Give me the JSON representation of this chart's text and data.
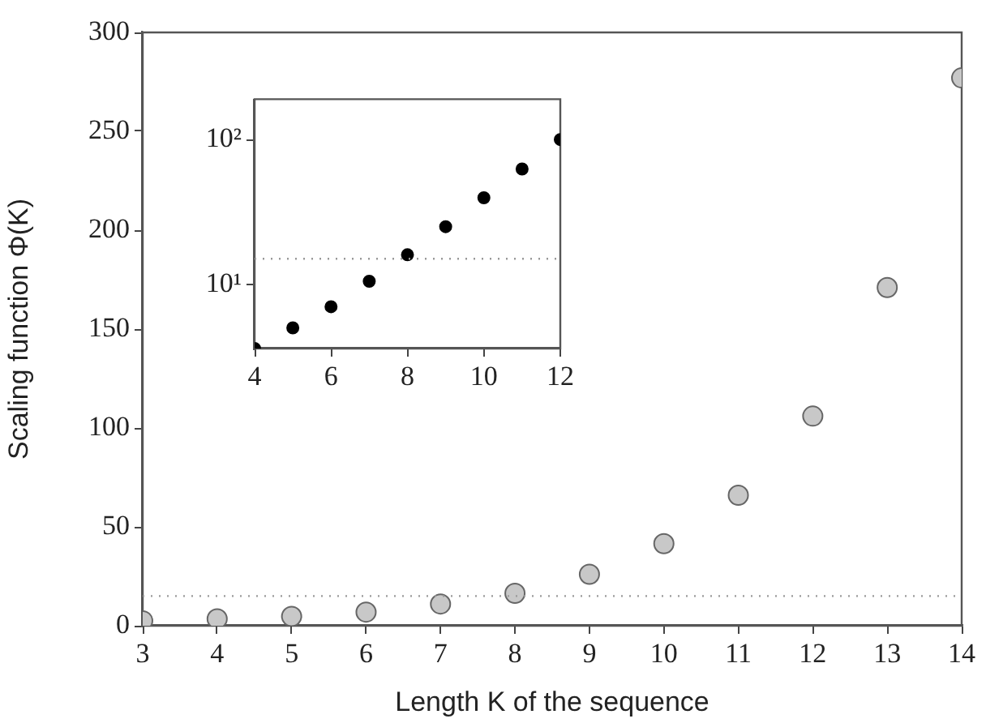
{
  "chart_data": [
    {
      "type": "scatter",
      "xlabel": "Length K of the sequence",
      "ylabel": "Scaling function Φ(K)",
      "x": [
        3,
        4,
        5,
        6,
        7,
        8,
        9,
        10,
        11,
        12,
        13,
        14
      ],
      "values": [
        2.5,
        3.5,
        4.7,
        6.9,
        11,
        16.4,
        26,
        41.5,
        66,
        106,
        171,
        277
      ],
      "color": "#c8c8c8",
      "marker": "circle",
      "xlim": [
        3,
        14
      ],
      "xticks": [
        3,
        4,
        5,
        6,
        7,
        8,
        9,
        10,
        11,
        12,
        13,
        14
      ],
      "ylim": [
        0,
        300
      ],
      "yticks": [
        0,
        50,
        100,
        150,
        200,
        250,
        300
      ],
      "grid": false,
      "ref_lines": [
        {
          "axis": "y",
          "value": 15,
          "color": "#999999",
          "line_style": "dotted"
        }
      ]
    },
    {
      "type": "scatter",
      "log": "y",
      "x": [
        4,
        5,
        6,
        7,
        8,
        9,
        10,
        11,
        12
      ],
      "values": [
        3.6,
        5,
        7,
        10.5,
        16,
        25,
        39.6,
        62.6,
        100
      ],
      "color": "#000000",
      "marker": "circle",
      "xlim": [
        4,
        12
      ],
      "xticks": [
        4,
        6,
        8,
        10,
        12
      ],
      "ylim": [
        3.6,
        190
      ],
      "yticks": [
        {
          "value": 10,
          "label": "10¹"
        },
        {
          "value": 100,
          "label": "10²"
        }
      ],
      "grid": false,
      "ref_lines": [
        {
          "axis": "y",
          "value": 15,
          "color": "#999999",
          "line_style": "dotted"
        }
      ]
    }
  ]
}
